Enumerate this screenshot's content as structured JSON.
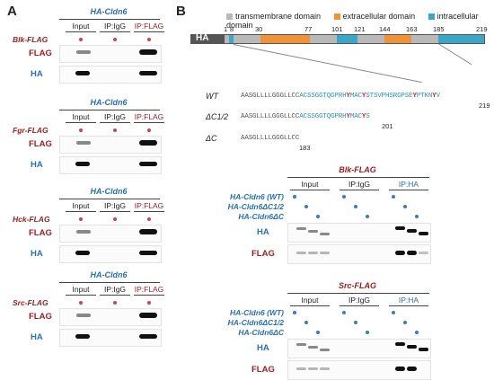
{
  "panel_a": {
    "letter": "A",
    "blocks": [
      {
        "title": "HA-Cldn6",
        "bait": "Blk-FLAG",
        "cols": [
          "Input",
          "IP:IgG",
          "IP:FLAG"
        ],
        "rows": [
          "FLAG",
          "HA"
        ]
      },
      {
        "title": "HA-Cldn6",
        "bait": "Fgr-FLAG",
        "cols": [
          "Input",
          "IP:IgG",
          "IP:FLAG"
        ],
        "rows": [
          "FLAG",
          "HA"
        ]
      },
      {
        "title": "HA-Cldn6",
        "bait": "Hck-FLAG",
        "cols": [
          "Input",
          "IP:IgG",
          "IP:FLAG"
        ],
        "rows": [
          "FLAG",
          "HA"
        ]
      },
      {
        "title": "HA-Cldn6",
        "bait": "Src-FLAG",
        "cols": [
          "Input",
          "IP:IgG",
          "IP:FLAG"
        ],
        "rows": [
          "FLAG",
          "HA"
        ]
      }
    ]
  },
  "panel_b": {
    "letter": "B",
    "legend": [
      "transmembrane domain",
      "extracellular domain",
      "intracellular domain"
    ],
    "legend_colors": [
      "#b9b9b9",
      "#f0923a",
      "#3aa7c9"
    ],
    "ha_tag": "HA",
    "positions": [
      "1",
      "8",
      "30",
      "77",
      "101",
      "121",
      "144",
      "163",
      "185",
      "219"
    ],
    "constructs": [
      {
        "name": "WT",
        "seq_gray": "AASGLLLLGGGLLCC",
        "seq_blue_a": "ACSSGGTQGPRH",
        "r1": "Y",
        "m1": "MAC",
        "r2": "Y",
        "seq_blue_b": "STSVPHSRGPSE",
        "r3": "Y",
        "seq_blue_c": "PTKN",
        "r4": "Y",
        "seq_blue_d": "V",
        "end": "219"
      },
      {
        "name": "ΔC1/2",
        "seq_gray": "AASGLLLLGGGLLCC",
        "seq_blue_a": "ACSSGGTQGPRH",
        "r1": "Y",
        "m1": "MAC",
        "r2": "Y",
        "seq_blue_b": "S",
        "end": "201"
      },
      {
        "name": "ΔC",
        "seq_gray": "AASGLLLLGGGLLCC",
        "end": "183"
      }
    ],
    "blots": [
      {
        "title": "Blk-FLAG",
        "cols": [
          "Input",
          "IP:IgG",
          "IP:HA"
        ],
        "conditions": [
          "HA-Cldn6 (WT)",
          "HA-Cldn6ΔC1/2",
          "HA-Cldn6ΔC"
        ],
        "rows": [
          "HA",
          "FLAG"
        ]
      },
      {
        "title": "Src-FLAG",
        "cols": [
          "Input",
          "IP:IgG",
          "IP:HA"
        ],
        "conditions": [
          "HA-Cldn6 (WT)",
          "HA-Cldn6ΔC1/2",
          "HA-Cldn6ΔC"
        ],
        "rows": [
          "HA",
          "FLAG"
        ]
      }
    ]
  }
}
